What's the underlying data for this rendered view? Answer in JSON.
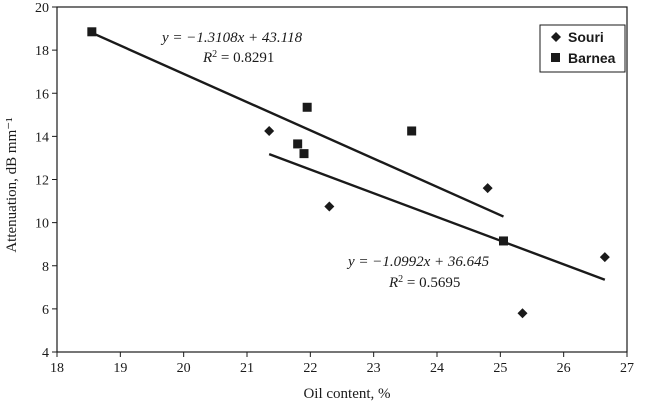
{
  "chart_data": {
    "type": "scatter",
    "xlabel": "Oil content, %",
    "ylabel": "Attenuation, dB mm⁻¹",
    "xlim": [
      18,
      27
    ],
    "ylim": [
      4,
      20
    ],
    "xticks": [
      18,
      19,
      20,
      21,
      22,
      23,
      24,
      25,
      26,
      27
    ],
    "yticks": [
      4,
      6,
      8,
      10,
      12,
      14,
      16,
      18,
      20
    ],
    "grid": false,
    "legend_position": "top-right",
    "series": [
      {
        "name": "Souri",
        "marker": "diamond",
        "points": [
          {
            "x": 21.35,
            "y": 14.25
          },
          {
            "x": 22.3,
            "y": 10.75
          },
          {
            "x": 24.8,
            "y": 11.6
          },
          {
            "x": 25.35,
            "y": 5.8
          },
          {
            "x": 26.65,
            "y": 8.4
          }
        ],
        "trendline": {
          "equation": "y = −1.0992x + 36.645",
          "r2_label": "R",
          "r2_sup": "2",
          "r2_value": " = 0.5695",
          "slope": -1.0992,
          "intercept": 36.645,
          "x_range": [
            21.35,
            26.65
          ]
        }
      },
      {
        "name": "Barnea",
        "marker": "square",
        "points": [
          {
            "x": 18.55,
            "y": 18.85
          },
          {
            "x": 21.8,
            "y": 13.65
          },
          {
            "x": 21.9,
            "y": 13.2
          },
          {
            "x": 21.95,
            "y": 15.35
          },
          {
            "x": 23.6,
            "y": 14.25
          },
          {
            "x": 25.05,
            "y": 9.15
          }
        ],
        "trendline": {
          "equation": "y = −1.3108x + 43.118",
          "r2_label": "R",
          "r2_sup": "2",
          "r2_value": " = 0.8291",
          "slope": -1.3108,
          "intercept": 43.118,
          "x_range": [
            18.55,
            25.05
          ]
        }
      }
    ]
  }
}
